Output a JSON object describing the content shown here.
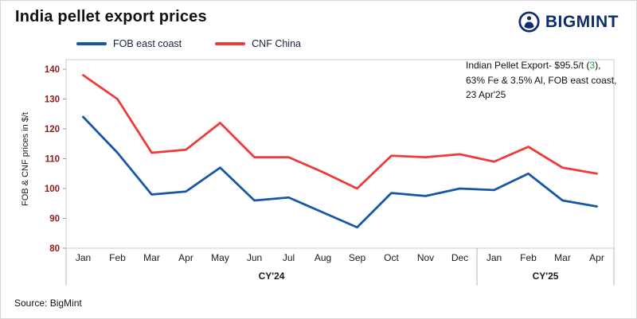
{
  "header": {
    "title": "India pellet export prices",
    "brand": "BIGMINT",
    "brand_color": "#0d2e6e"
  },
  "legend": [
    {
      "label": "FOB east coast"
    },
    {
      "label": "CNF China"
    }
  ],
  "annotation": {
    "line1_prefix": "Indian Pellet Export- $95.5/t (",
    "highlight": "3",
    "line1_suffix": "),",
    "line2": "63% Fe & 3.5% Al, FOB east coast,",
    "line3": "23 Apr'25",
    "highlight_color": "#1fa03c"
  },
  "source": "Source: BigMint",
  "chart_data": {
    "type": "line",
    "categories": [
      "Jan",
      "Feb",
      "Mar",
      "Apr",
      "May",
      "Jun",
      "Jul",
      "Aug",
      "Sep",
      "Oct",
      "Nov",
      "Dec",
      "Jan",
      "Feb",
      "Mar",
      "Apr"
    ],
    "groups": [
      {
        "label": "CY'24",
        "span": 12
      },
      {
        "label": "CY'25",
        "span": 4
      }
    ],
    "series": [
      {
        "name": "FOB east coast",
        "color": "#1757a6",
        "values": [
          124,
          112,
          98,
          99,
          107,
          96,
          97,
          92,
          87,
          98.5,
          97.5,
          100,
          99.5,
          105,
          96,
          94
        ]
      },
      {
        "name": "CNF China",
        "color": "#ee3b39",
        "values": [
          138,
          130,
          112,
          113,
          122,
          110.5,
          110.5,
          105.5,
          100,
          111,
          110.5,
          111.5,
          109,
          114,
          107,
          105
        ]
      }
    ],
    "ylabel": "FOB & CNF prices in $/t",
    "ylim": [
      80,
      140
    ],
    "yticks": [
      80,
      90,
      100,
      110,
      120,
      130,
      140
    ],
    "ytick_color": "#8e1b1b",
    "grid": false,
    "legend_position": "top"
  }
}
